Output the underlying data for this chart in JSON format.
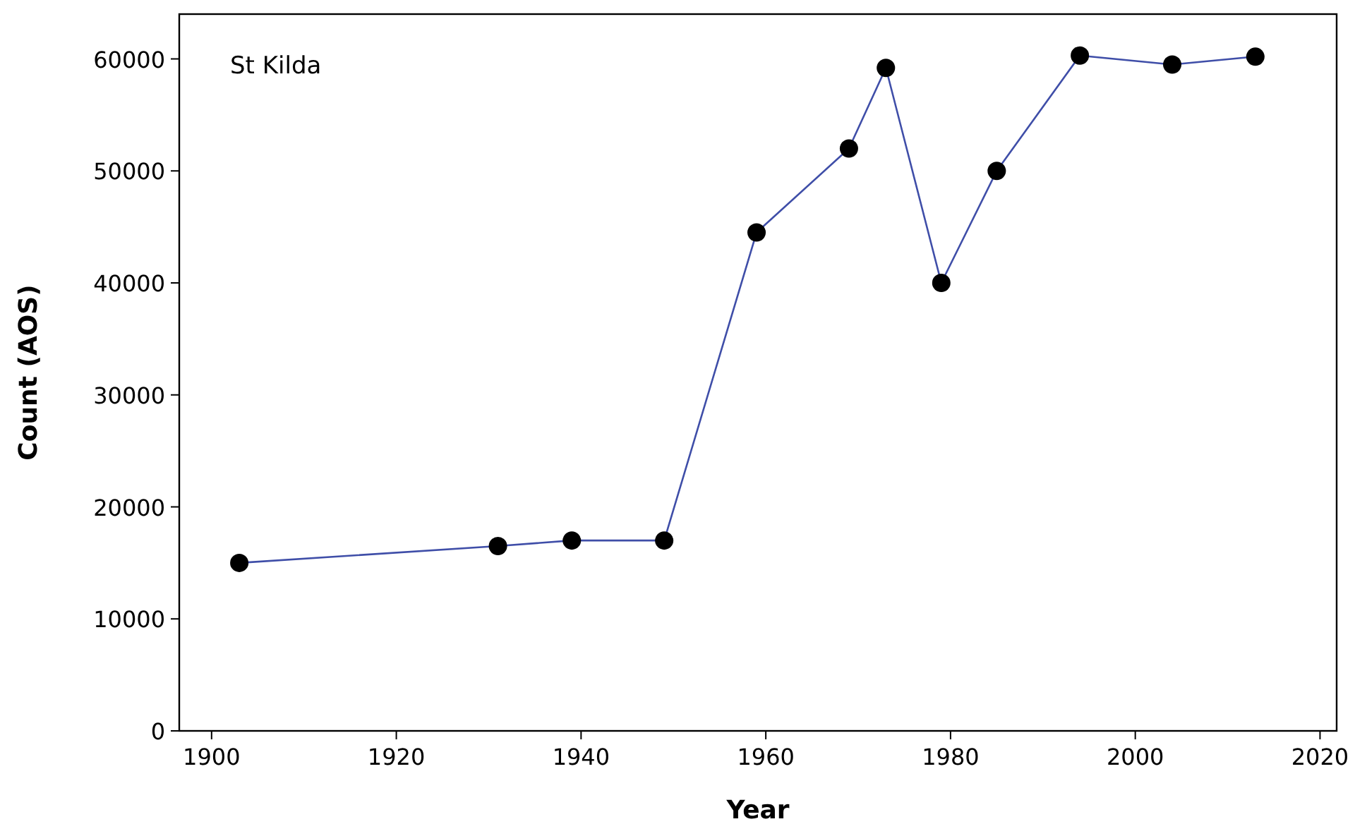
{
  "chart_data": {
    "type": "line",
    "xlabel": "Year",
    "ylabel": "Count (AOS)",
    "annotations": [
      "St Kilda"
    ],
    "x": [
      1903,
      1931,
      1939,
      1949,
      1959,
      1969,
      1973,
      1979,
      1985,
      1994,
      2004,
      2013
    ],
    "series": [
      {
        "color": "#3f4ea8",
        "values": [
          15000,
          16500,
          17000,
          17000,
          44500,
          52000,
          59200,
          40000,
          50000,
          60300,
          59500,
          60200
        ]
      }
    ],
    "xlim": [
      1896.5,
      2021.8
    ],
    "xticks": [
      1900,
      1920,
      1940,
      1960,
      1980,
      2000,
      2020
    ],
    "ylim": [
      0,
      64000
    ],
    "yticks": [
      0,
      10000,
      20000,
      30000,
      40000,
      50000,
      60000
    ],
    "marker": "circle",
    "line_style": "solid",
    "grid": false
  }
}
